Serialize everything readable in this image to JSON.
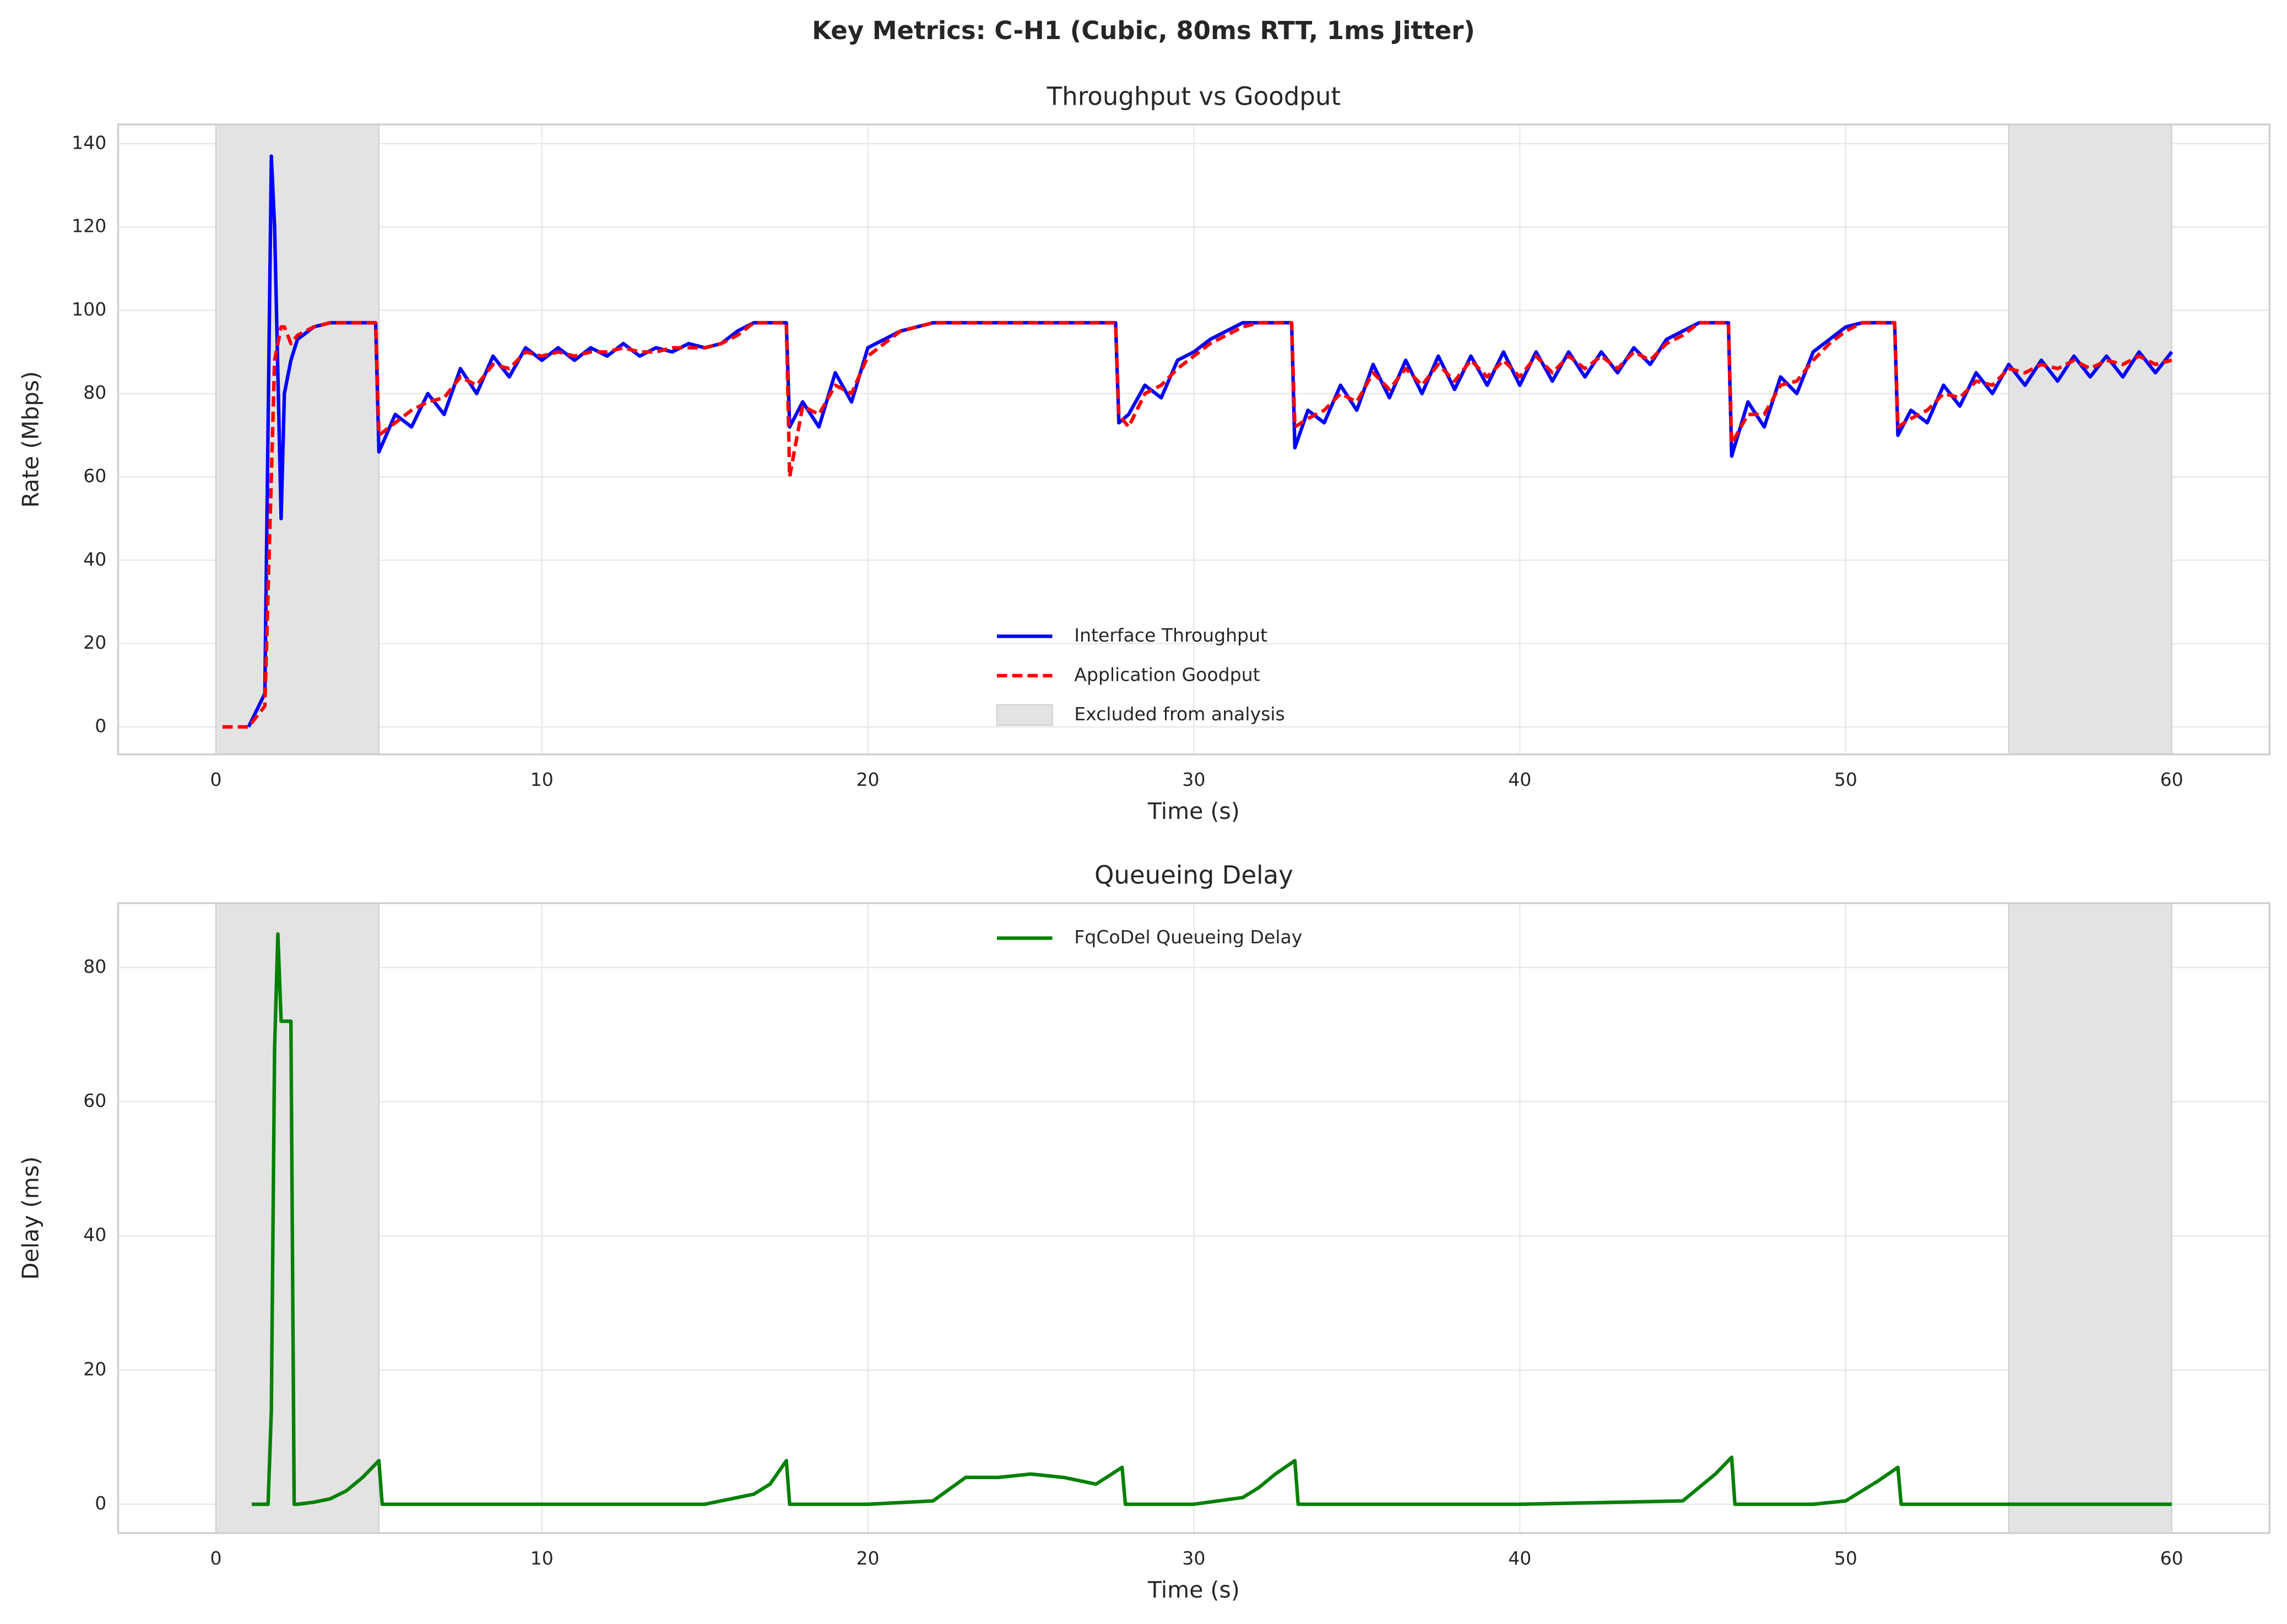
{
  "title": "Key Metrics: C-H1 (Cubic, 80ms RTT, 1ms Jitter)",
  "chart_data": [
    {
      "type": "line",
      "title": "Throughput vs Goodput",
      "xlabel": "Time (s)",
      "ylabel": "Rate (Mbps)",
      "xlim": [
        -3,
        63
      ],
      "ylim": [
        -6.6,
        144.6
      ],
      "xticks": [
        0,
        10,
        20,
        30,
        40,
        50,
        60
      ],
      "yticks": [
        0,
        20,
        40,
        60,
        80,
        100,
        120,
        140
      ],
      "grid": true,
      "legend": "lower center",
      "shaded_regions": [
        [
          0,
          5
        ],
        [
          55,
          60
        ]
      ],
      "shaded_label": "Excluded from analysis",
      "shaded_color": "#e3e3e3",
      "x": [
        0.2,
        1.0,
        1.5,
        1.7,
        1.8,
        2.0,
        2.1,
        2.3,
        2.5,
        3.0,
        3.5,
        4.0,
        4.5,
        4.9,
        5.0,
        5.5,
        6.0,
        6.5,
        7.0,
        7.5,
        8.0,
        8.5,
        9.0,
        9.5,
        10,
        10.5,
        11,
        11.5,
        12,
        12.5,
        13,
        13.5,
        14,
        14.5,
        15,
        15.5,
        16,
        16.5,
        17,
        17.5,
        17.6,
        18,
        18.5,
        19,
        19.5,
        20,
        20.5,
        21,
        21.5,
        22,
        23,
        24,
        25,
        26,
        27,
        27.6,
        27.7,
        28,
        28.5,
        29,
        29.5,
        30,
        30.5,
        31,
        31.5,
        32,
        32.5,
        33.0,
        33.1,
        33.5,
        34,
        34.5,
        35,
        35.5,
        36,
        36.5,
        37,
        37.5,
        38,
        38.5,
        39,
        39.5,
        40,
        40.5,
        41,
        41.5,
        42,
        42.5,
        43,
        43.5,
        44,
        44.5,
        45,
        45.5,
        46,
        46.4,
        46.5,
        47,
        47.5,
        48,
        48.5,
        49,
        49.5,
        50,
        50.5,
        51,
        51.5,
        51.6,
        52,
        52.5,
        53,
        53.5,
        54,
        54.5,
        55,
        55.5,
        56,
        56.5,
        57,
        57.5,
        58,
        58.5,
        59,
        59.5,
        60
      ],
      "series": [
        {
          "name": "Interface Throughput",
          "color": "#0000ff",
          "dash": false,
          "values": [
            null,
            0,
            8,
            137,
            120,
            50,
            80,
            88,
            93,
            96,
            97,
            97,
            97,
            97,
            66,
            75,
            72,
            80,
            75,
            86,
            80,
            89,
            84,
            91,
            88,
            91,
            88,
            91,
            89,
            92,
            89,
            91,
            90,
            92,
            91,
            92,
            95,
            97,
            97,
            97,
            72,
            78,
            72,
            85,
            78,
            91,
            93,
            95,
            96,
            97,
            97,
            97,
            97,
            97,
            97,
            97,
            73,
            75,
            82,
            79,
            88,
            90,
            93,
            95,
            97,
            97,
            97,
            97,
            67,
            76,
            73,
            82,
            76,
            87,
            79,
            88,
            80,
            89,
            81,
            89,
            82,
            90,
            82,
            90,
            83,
            90,
            84,
            90,
            85,
            91,
            87,
            93,
            95,
            97,
            97,
            97,
            65,
            78,
            72,
            84,
            80,
            90,
            93,
            96,
            97,
            97,
            97,
            70,
            76,
            73,
            82,
            77,
            85,
            80,
            87,
            82,
            88,
            83,
            89,
            84,
            89,
            84,
            90,
            85,
            90
          ]
        },
        {
          "name": "Application Goodput",
          "color": "#ff0000",
          "dash": true,
          "values": [
            0,
            0,
            5,
            60,
            88,
            96,
            96,
            92,
            94,
            96,
            97,
            97,
            97,
            97,
            70,
            73,
            76,
            78,
            79,
            84,
            82,
            87,
            86,
            90,
            89,
            90,
            89,
            90,
            90,
            91,
            90,
            90,
            91,
            91,
            91,
            92,
            94,
            97,
            97,
            97,
            60,
            77,
            75,
            82,
            80,
            89,
            92,
            95,
            96,
            97,
            97,
            97,
            97,
            97,
            97,
            97,
            75,
            72,
            80,
            82,
            86,
            89,
            92,
            94,
            96,
            97,
            97,
            97,
            72,
            74,
            76,
            80,
            78,
            85,
            81,
            86,
            82,
            87,
            83,
            88,
            84,
            88,
            84,
            89,
            85,
            89,
            86,
            89,
            86,
            90,
            88,
            92,
            94,
            97,
            97,
            97,
            68,
            75,
            75,
            82,
            83,
            88,
            92,
            95,
            97,
            97,
            97,
            72,
            74,
            76,
            80,
            79,
            83,
            82,
            86,
            85,
            87,
            86,
            88,
            86,
            88,
            87,
            89,
            87,
            88
          ]
        }
      ]
    },
    {
      "type": "line",
      "title": "Queueing Delay",
      "xlabel": "Time (s)",
      "ylabel": "Delay (ms)",
      "xlim": [
        -3,
        63
      ],
      "ylim": [
        -4.3,
        89.6
      ],
      "xticks": [
        0,
        10,
        20,
        30,
        40,
        50,
        60
      ],
      "yticks": [
        0,
        20,
        40,
        60,
        80
      ],
      "grid": true,
      "legend": "upper center",
      "shaded_regions": [
        [
          0,
          5
        ],
        [
          55,
          60
        ]
      ],
      "shaded_color": "#e3e3e3",
      "x": [
        1.1,
        1.6,
        1.7,
        1.8,
        1.9,
        2.0,
        2.1,
        2.3,
        2.4,
        2.5,
        3.0,
        3.5,
        4.0,
        4.5,
        5.0,
        5.1,
        10,
        15,
        16.5,
        17,
        17.5,
        17.6,
        20,
        22,
        23,
        24,
        25,
        26,
        27,
        27.8,
        27.9,
        30,
        31.5,
        32,
        32.5,
        33.1,
        33.2,
        40,
        45,
        45.5,
        46,
        46.5,
        46.6,
        49,
        50,
        50.5,
        51,
        51.6,
        51.7,
        55,
        60
      ],
      "series": [
        {
          "name": "FqCoDel Queueing Delay",
          "color": "#008000",
          "dash": false,
          "values": [
            0,
            0,
            14,
            68,
            85,
            72,
            72,
            72,
            0,
            0,
            0.3,
            0.8,
            2,
            4,
            6.5,
            0,
            0,
            0,
            1.5,
            3,
            6.5,
            0,
            0,
            0.5,
            4,
            4,
            4.5,
            4,
            3,
            5.5,
            0,
            0,
            1,
            2.5,
            4.5,
            6.5,
            0,
            0,
            0.5,
            2.5,
            4.5,
            7,
            0,
            0,
            0.5,
            2,
            3.5,
            5.5,
            0,
            0,
            0
          ]
        }
      ]
    }
  ]
}
